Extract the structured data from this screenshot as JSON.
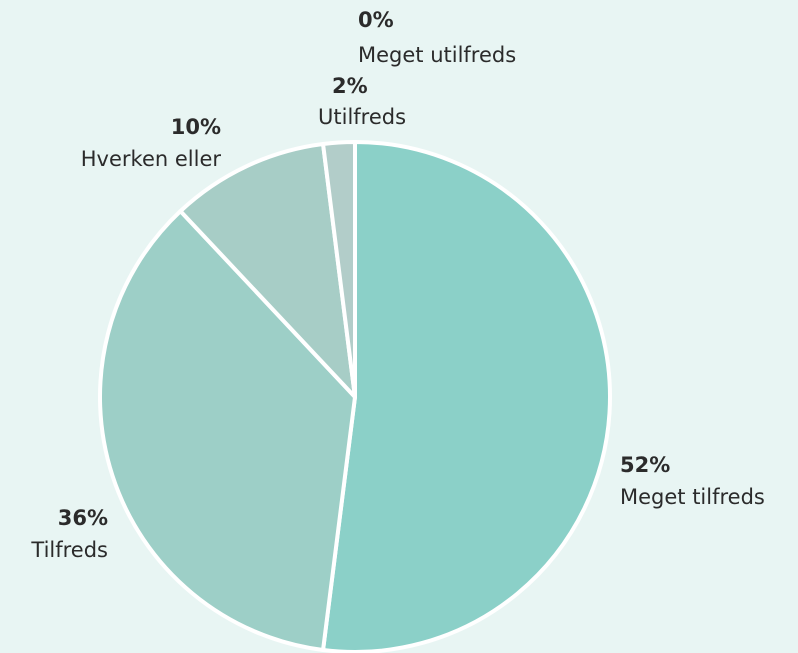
{
  "chart_data": {
    "type": "pie",
    "categories": [
      "Meget tilfreds",
      "Tilfreds",
      "Hverken eller",
      "Utilfreds",
      "Meget utilfreds"
    ],
    "values": [
      52,
      36,
      10,
      2,
      0
    ],
    "value_labels": [
      "52%",
      "36%",
      "10%",
      "2%",
      "0%"
    ],
    "colors": [
      "#8bd0c8",
      "#9dcfc7",
      "#a7cdc6",
      "#b2cdc9",
      "#bccfcc"
    ]
  }
}
